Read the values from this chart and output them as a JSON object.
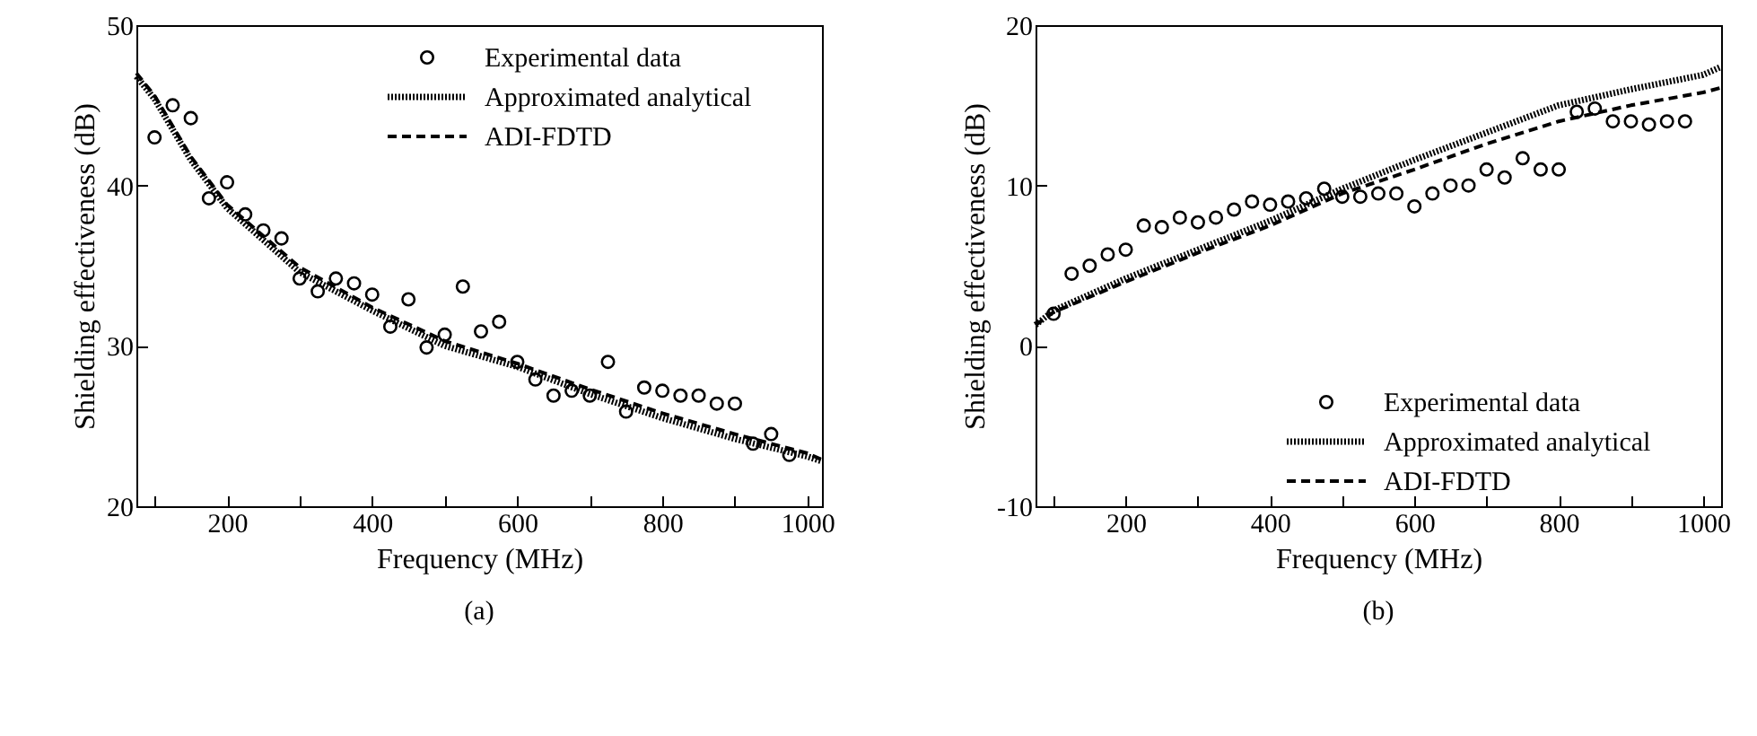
{
  "chart_data": [
    {
      "type": "line",
      "xlabel": "Frequency (MHz)",
      "ylabel": "Shielding effectiveness (dB)",
      "annotations": [
        "(a)"
      ],
      "xlim": [
        75,
        1020
      ],
      "ylim": [
        20,
        50
      ],
      "xticks": [
        {
          "value": 100,
          "label": null
        },
        200,
        {
          "value": 300,
          "label": null
        },
        400,
        {
          "value": 500,
          "label": null
        },
        600,
        {
          "value": 700,
          "label": null
        },
        800,
        {
          "value": 900,
          "label": null
        },
        1000
      ],
      "yticks": [
        20,
        30,
        40,
        50
      ],
      "grid": false,
      "legend": "top right",
      "series": [
        {
          "name": "Experimental data",
          "type": "scatter",
          "marker": "circle",
          "color": "#000000",
          "x": [
            100,
            125,
            150,
            175,
            200,
            225,
            250,
            275,
            300,
            325,
            350,
            375,
            400,
            425,
            450,
            475,
            500,
            525,
            550,
            575,
            600,
            625,
            650,
            675,
            700,
            725,
            750,
            775,
            800,
            825,
            850,
            875,
            900,
            925,
            950,
            975
          ],
          "values": [
            43.0,
            45.0,
            44.2,
            39.2,
            40.2,
            38.2,
            37.2,
            36.7,
            34.2,
            33.4,
            34.2,
            33.9,
            33.2,
            31.2,
            32.9,
            29.9,
            30.7,
            33.7,
            30.9,
            31.5,
            29.0,
            27.9,
            26.9,
            27.2,
            26.9,
            29.0,
            25.9,
            27.4,
            27.2,
            26.9,
            26.9,
            26.4,
            26.4,
            23.9,
            24.5,
            23.2
          ]
        },
        {
          "name": "Approximated analytical",
          "type": "line",
          "line_style": "dotted",
          "color": "#000000",
          "x": [
            75,
            100,
            150,
            200,
            300,
            400,
            500,
            600,
            700,
            800,
            900,
            1000,
            1020
          ],
          "values": [
            46.8,
            45.4,
            41.6,
            38.6,
            34.6,
            32.2,
            30.0,
            28.7,
            27.0,
            25.5,
            24.2,
            23.1,
            22.8
          ]
        },
        {
          "name": "ADI-FDTD",
          "type": "line",
          "line_style": "dashed",
          "color": "#000000",
          "x": [
            75,
            100,
            150,
            200,
            300,
            400,
            500,
            600,
            700,
            800,
            900,
            1000,
            1020
          ],
          "values": [
            47.0,
            45.6,
            41.8,
            38.8,
            34.9,
            32.4,
            30.3,
            28.9,
            27.3,
            25.8,
            24.5,
            23.3,
            22.9
          ]
        }
      ]
    },
    {
      "type": "line",
      "xlabel": "Frequency (MHz)",
      "ylabel": "Shielding effectiveness (dB)",
      "annotations": [
        "(b)"
      ],
      "xlim": [
        75,
        1025
      ],
      "ylim": [
        -10,
        20
      ],
      "xticks": [
        {
          "value": 100,
          "label": null
        },
        200,
        {
          "value": 300,
          "label": null
        },
        400,
        {
          "value": 500,
          "label": null
        },
        600,
        {
          "value": 700,
          "label": null
        },
        800,
        {
          "value": 900,
          "label": null
        },
        1000
      ],
      "yticks": [
        -10,
        0,
        10,
        20
      ],
      "grid": false,
      "legend": "bottom right",
      "series": [
        {
          "name": "Experimental data",
          "type": "scatter",
          "marker": "circle",
          "color": "#000000",
          "x": [
            100,
            125,
            150,
            175,
            200,
            225,
            250,
            275,
            300,
            325,
            350,
            375,
            400,
            425,
            450,
            475,
            500,
            525,
            550,
            575,
            600,
            625,
            650,
            675,
            700,
            725,
            750,
            775,
            800,
            825,
            850,
            875,
            900,
            925,
            950,
            975
          ],
          "values": [
            2.0,
            4.5,
            5.0,
            5.7,
            6.0,
            7.5,
            7.4,
            8.0,
            7.7,
            8.0,
            8.5,
            9.0,
            8.8,
            9.0,
            9.2,
            9.8,
            9.3,
            9.3,
            9.5,
            9.5,
            8.7,
            9.5,
            10.0,
            10.0,
            11.0,
            10.5,
            11.7,
            11.0,
            11.0,
            14.6,
            14.8,
            14.0,
            14.0,
            13.8,
            14.0,
            14.0
          ]
        },
        {
          "name": "Approximated analytical",
          "type": "line",
          "line_style": "dotted",
          "color": "#000000",
          "x": [
            75,
            100,
            200,
            300,
            400,
            500,
            600,
            700,
            800,
            900,
            1000,
            1025
          ],
          "values": [
            1.3,
            2.2,
            4.2,
            6.0,
            7.8,
            9.8,
            11.6,
            13.3,
            15.0,
            16.0,
            16.9,
            17.4
          ]
        },
        {
          "name": "ADI-FDTD",
          "type": "line",
          "line_style": "dashed",
          "color": "#000000",
          "x": [
            75,
            100,
            200,
            300,
            400,
            500,
            600,
            700,
            800,
            900,
            1000,
            1025
          ],
          "values": [
            1.3,
            2.1,
            4.0,
            5.8,
            7.5,
            9.5,
            11.0,
            12.6,
            14.0,
            15.0,
            15.8,
            16.1
          ]
        }
      ]
    }
  ]
}
